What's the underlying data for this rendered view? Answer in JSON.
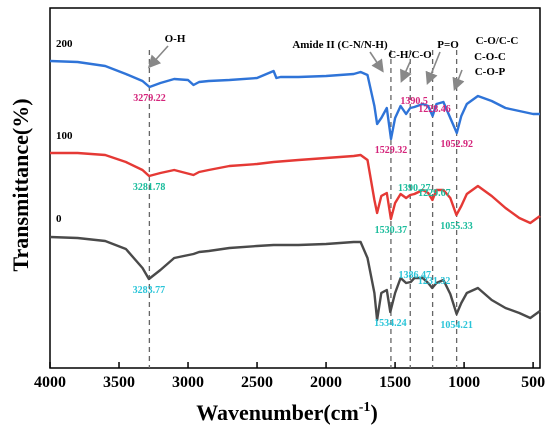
{
  "chart_data": {
    "type": "line",
    "xlabel": "Wavenumber(cm",
    "xlabel_sup": "-1",
    "xlabel_end": ")",
    "ylabel": "Transmittance(%)",
    "xlim": [
      4000,
      450
    ],
    "x_reversed": true,
    "x_ticks": [
      "4000",
      "3500",
      "3000",
      "2500",
      "2000",
      "1500",
      "1000",
      "500"
    ],
    "y_ticks": [],
    "grid": false,
    "series": [
      {
        "name": "200",
        "color": "#2f74d8",
        "label_color": "#d4237a",
        "points": [
          [
            4000,
            53
          ],
          [
            3800,
            54
          ],
          [
            3600,
            58
          ],
          [
            3450,
            66
          ],
          [
            3330,
            73
          ],
          [
            3279.22,
            79
          ],
          [
            3200,
            75
          ],
          [
            3100,
            71
          ],
          [
            3000,
            72
          ],
          [
            2960,
            77
          ],
          [
            2920,
            74
          ],
          [
            2850,
            73
          ],
          [
            2700,
            72
          ],
          [
            2500,
            70
          ],
          [
            2380,
            63
          ],
          [
            2360,
            70
          ],
          [
            2330,
            69
          ],
          [
            2200,
            69
          ],
          [
            2000,
            68
          ],
          [
            1900,
            67
          ],
          [
            1800,
            66
          ],
          [
            1750,
            64
          ],
          [
            1700,
            67
          ],
          [
            1650,
            98
          ],
          [
            1630,
            116
          ],
          [
            1600,
            110
          ],
          [
            1560,
            100
          ],
          [
            1529.32,
            131
          ],
          [
            1500,
            110
          ],
          [
            1460,
            98
          ],
          [
            1420,
            106
          ],
          [
            1390.5,
            100
          ],
          [
            1360,
            99
          ],
          [
            1300,
            96
          ],
          [
            1260,
            98
          ],
          [
            1228.46,
            108
          ],
          [
            1200,
            96
          ],
          [
            1150,
            94
          ],
          [
            1100,
            110
          ],
          [
            1052.92,
            125
          ],
          [
            1020,
            108
          ],
          [
            980,
            96
          ],
          [
            900,
            88
          ],
          [
            800,
            93
          ],
          [
            700,
            100
          ],
          [
            600,
            103
          ],
          [
            500,
            106
          ],
          [
            450,
            106
          ]
        ],
        "peaks": [
          {
            "wn": 3279.22,
            "label": "3279.22"
          },
          {
            "wn": 1529.32,
            "label": "1529.32"
          },
          {
            "wn": 1390.5,
            "label": "1390.5"
          },
          {
            "wn": 1228.46,
            "label": "1228.46"
          },
          {
            "wn": 1052.92,
            "label": "1052.92"
          }
        ]
      },
      {
        "name": "100",
        "color": "#e53935",
        "label_color": "#1abc9c",
        "points": [
          [
            4000,
            145
          ],
          [
            3800,
            145
          ],
          [
            3600,
            147
          ],
          [
            3450,
            154
          ],
          [
            3330,
            162
          ],
          [
            3281.78,
            168
          ],
          [
            3200,
            165
          ],
          [
            3100,
            162
          ],
          [
            2960,
            167
          ],
          [
            2920,
            164
          ],
          [
            2850,
            162
          ],
          [
            2700,
            158
          ],
          [
            2500,
            156
          ],
          [
            2380,
            154
          ],
          [
            2200,
            152
          ],
          [
            2000,
            150
          ],
          [
            1900,
            149
          ],
          [
            1800,
            148
          ],
          [
            1750,
            147
          ],
          [
            1700,
            152
          ],
          [
            1650,
            192
          ],
          [
            1630,
            205
          ],
          [
            1600,
            188
          ],
          [
            1560,
            185
          ],
          [
            1530.37,
            211
          ],
          [
            1500,
            195
          ],
          [
            1460,
            186
          ],
          [
            1420,
            190
          ],
          [
            1390.27,
            187
          ],
          [
            1360,
            186
          ],
          [
            1300,
            182
          ],
          [
            1260,
            185
          ],
          [
            1229.67,
            192
          ],
          [
            1200,
            182
          ],
          [
            1150,
            182
          ],
          [
            1100,
            190
          ],
          [
            1055.33,
            207
          ],
          [
            1020,
            198
          ],
          [
            980,
            186
          ],
          [
            900,
            178
          ],
          [
            800,
            188
          ],
          [
            700,
            200
          ],
          [
            600,
            210
          ],
          [
            520,
            215
          ],
          [
            450,
            208
          ]
        ],
        "peaks": [
          {
            "wn": 3281.78,
            "label": "3281.78"
          },
          {
            "wn": 1530.37,
            "label": "1530.37"
          },
          {
            "wn": 1390.27,
            "label": "1390.27"
          },
          {
            "wn": 1229.67,
            "label": "1229.67"
          },
          {
            "wn": 1055.33,
            "label": "1055.33"
          }
        ]
      },
      {
        "name": "0",
        "color": "#4a4a4a",
        "label_color": "#29c4d8",
        "points": [
          [
            4000,
            229
          ],
          [
            3800,
            230
          ],
          [
            3600,
            233
          ],
          [
            3450,
            241
          ],
          [
            3330,
            260
          ],
          [
            3283.77,
            271
          ],
          [
            3200,
            262
          ],
          [
            3100,
            250
          ],
          [
            2960,
            246
          ],
          [
            2920,
            244
          ],
          [
            2850,
            243
          ],
          [
            2700,
            240
          ],
          [
            2500,
            238
          ],
          [
            2380,
            237
          ],
          [
            2200,
            237
          ],
          [
            2000,
            236
          ],
          [
            1900,
            235
          ],
          [
            1800,
            234
          ],
          [
            1750,
            234
          ],
          [
            1700,
            250
          ],
          [
            1650,
            285
          ],
          [
            1630,
            312
          ],
          [
            1600,
            285
          ],
          [
            1560,
            282
          ],
          [
            1534.24,
            304
          ],
          [
            1500,
            285
          ],
          [
            1460,
            270
          ],
          [
            1420,
            275
          ],
          [
            1386.47,
            274
          ],
          [
            1360,
            270
          ],
          [
            1300,
            270
          ],
          [
            1260,
            275
          ],
          [
            1231.32,
            280
          ],
          [
            1200,
            275
          ],
          [
            1150,
            272
          ],
          [
            1100,
            286
          ],
          [
            1054.21,
            306
          ],
          [
            1020,
            295
          ],
          [
            980,
            285
          ],
          [
            900,
            280
          ],
          [
            800,
            292
          ],
          [
            700,
            300
          ],
          [
            600,
            305
          ],
          [
            520,
            310
          ],
          [
            450,
            303
          ]
        ],
        "peaks": [
          {
            "wn": 3283.77,
            "label": "3283.77"
          },
          {
            "wn": 1534.24,
            "label": "1534.24"
          },
          {
            "wn": 1386.47,
            "label": "1386.47"
          },
          {
            "wn": 1231.32,
            "label": "1231.32"
          },
          {
            "wn": 1054.21,
            "label": "1054.21"
          }
        ]
      }
    ],
    "annotations": [
      {
        "text": "O-H",
        "wn": 3280
      },
      {
        "text": "Amide II (C-N/N-H)",
        "wn": 1530
      },
      {
        "text": "C-H/C-O",
        "wn": 1390
      },
      {
        "text": "P=O",
        "wn": 1228
      },
      {
        "text": "C-O/C-C",
        "wn": 1054
      },
      {
        "text": "C-O-C",
        "wn": 1054
      },
      {
        "text": "C-O-P",
        "wn": 1054
      }
    ]
  }
}
